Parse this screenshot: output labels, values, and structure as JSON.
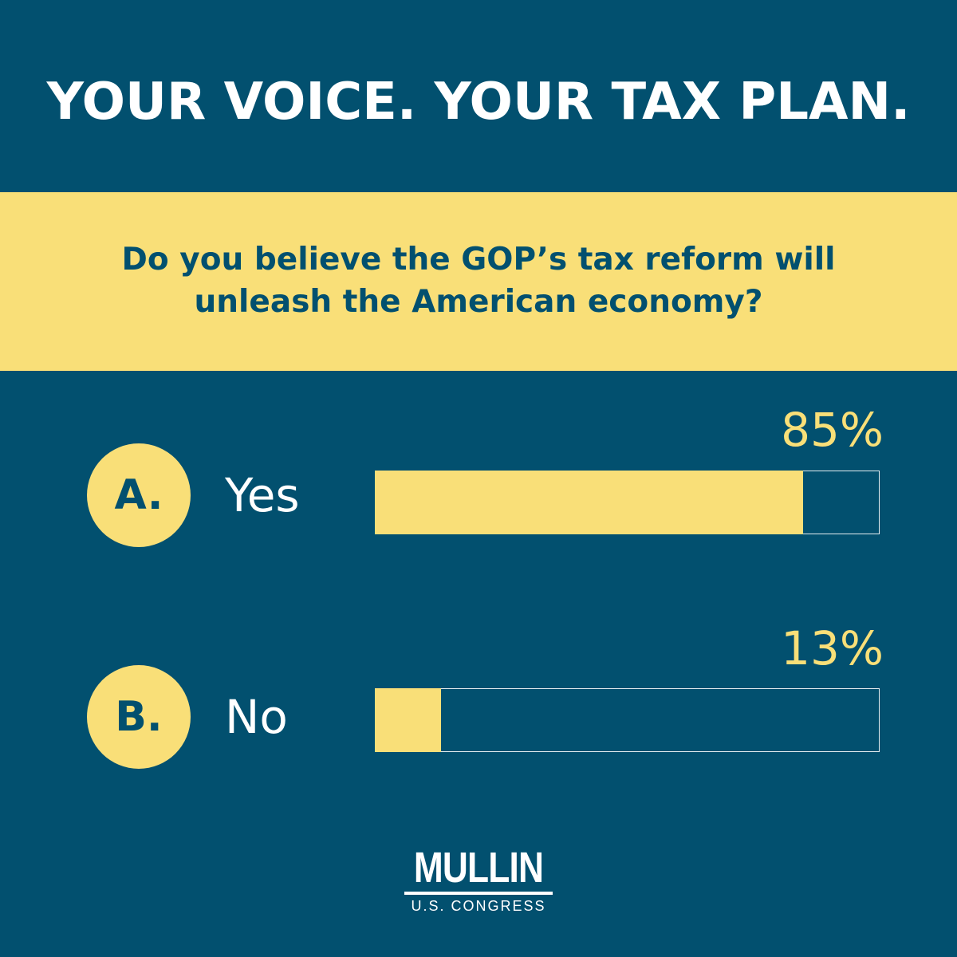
{
  "headline": "YOUR VOICE. YOUR TAX PLAN.",
  "question": {
    "line1": "Do you believe the GOP’s tax reform will",
    "line2": "unleash the American economy?"
  },
  "chart_data": {
    "type": "bar",
    "orientation": "horizontal",
    "categories": [
      "Yes",
      "No"
    ],
    "values": [
      85,
      13
    ],
    "value_labels": [
      "85%",
      "13%"
    ],
    "option_letters": [
      "A.",
      "B."
    ],
    "xlim": [
      0,
      100
    ],
    "title": "",
    "xlabel": "",
    "ylabel": "",
    "grid": false
  },
  "logo": {
    "name": "MULLIN",
    "subtitle": "U.S. CONGRESS"
  },
  "colors": {
    "background": "#02506f",
    "accent": "#f9df78",
    "text": "#ffffff"
  }
}
